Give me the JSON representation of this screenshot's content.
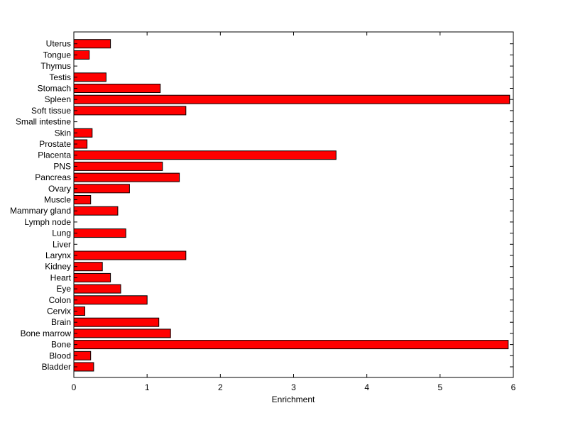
{
  "chart_data": {
    "type": "bar",
    "orientation": "horizontal",
    "title": "",
    "xlabel": "Enrichment",
    "ylabel": "",
    "xlim": [
      0,
      6
    ],
    "xticks": [
      "0",
      "1",
      "2",
      "3",
      "4",
      "5",
      "6"
    ],
    "grid": false,
    "bar_color": "#ff0000",
    "bar_edge_color": "#000000",
    "categories": [
      "Bladder",
      "Blood",
      "Bone",
      "Bone marrow",
      "Brain",
      "Cervix",
      "Colon",
      "Eye",
      "Heart",
      "Kidney",
      "Larynx",
      "Liver",
      "Lung",
      "Lymph node",
      "Mammary gland",
      "Muscle",
      "Ovary",
      "Pancreas",
      "PNS",
      "Placenta",
      "Prostate",
      "Skin",
      "Small intestine",
      "Soft tissue",
      "Spleen",
      "Stomach",
      "Testis",
      "Thymus",
      "Tongue",
      "Uterus"
    ],
    "values": [
      0.27,
      0.23,
      5.93,
      1.32,
      1.16,
      0.15,
      1.0,
      0.64,
      0.5,
      0.39,
      1.53,
      0,
      0.71,
      0,
      0.6,
      0.23,
      0.76,
      1.44,
      1.21,
      3.58,
      0.18,
      0.25,
      0,
      1.53,
      5.95,
      1.18,
      0.44,
      0,
      0.21,
      0.5
    ]
  }
}
